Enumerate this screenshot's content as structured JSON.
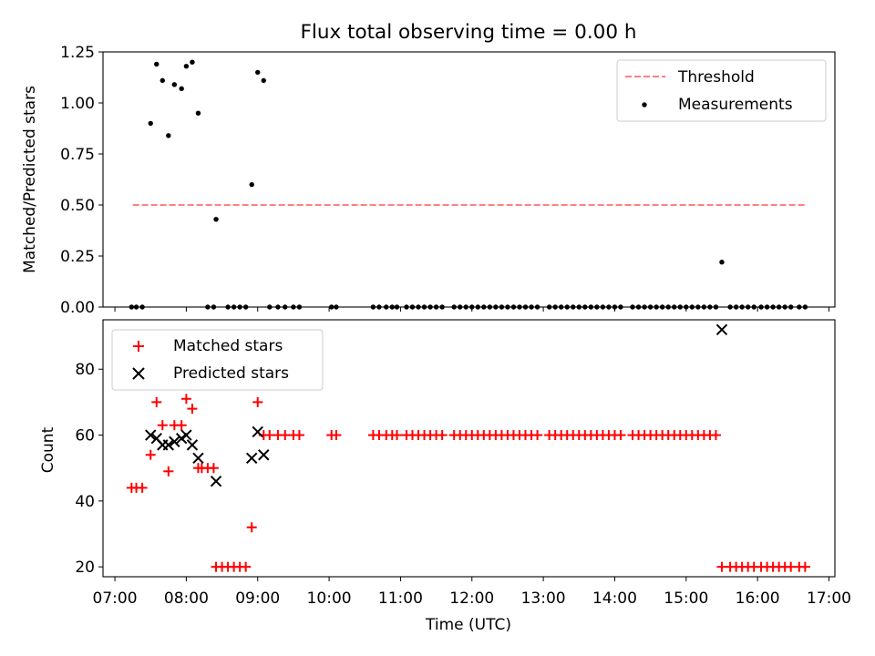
{
  "chart_data": [
    {
      "type": "scatter",
      "title": "Flux total observing time = 0.00 h",
      "xlabel": "",
      "ylabel": "Matched/Predicted stars",
      "ylim": [
        0,
        1.25
      ],
      "yticks": [
        0,
        0.25,
        0.5,
        0.75,
        1.0,
        1.25
      ],
      "ytick_labels": [
        "0.00",
        "0.25",
        "0.50",
        "0.75",
        "1.00",
        "1.25"
      ],
      "xlim": [
        "06:50",
        "17:05"
      ],
      "grid": false,
      "legend": {
        "placement": "upper right",
        "entries": [
          "Threshold",
          "Measurements"
        ]
      },
      "threshold": {
        "name": "Threshold",
        "value": 0.5,
        "x_start": "07:15",
        "x_end": "16:40",
        "color": "#ff8080",
        "style": "dashed"
      },
      "series": [
        {
          "name": "Measurements",
          "color": "#000000",
          "points": [
            [
              "07:14",
              0
            ],
            [
              "07:18",
              0
            ],
            [
              "07:23",
              0
            ],
            [
              "07:30",
              0.9
            ],
            [
              "07:35",
              1.19
            ],
            [
              "07:40",
              1.11
            ],
            [
              "07:45",
              0.84
            ],
            [
              "07:50",
              1.09
            ],
            [
              "07:56",
              1.07
            ],
            [
              "08:00",
              1.18
            ],
            [
              "08:05",
              1.2
            ],
            [
              "08:10",
              0.95
            ],
            [
              "08:18",
              0
            ],
            [
              "08:23",
              0
            ],
            [
              "08:25",
              0.43
            ],
            [
              "08:35",
              0
            ],
            [
              "08:40",
              0
            ],
            [
              "08:45",
              0
            ],
            [
              "08:50",
              0
            ],
            [
              "08:55",
              0.6
            ],
            [
              "09:00",
              1.15
            ],
            [
              "09:05",
              1.11
            ],
            [
              "09:10",
              0
            ],
            [
              "09:17",
              0
            ],
            [
              "09:23",
              0
            ],
            [
              "09:30",
              0
            ],
            [
              "09:35",
              0
            ],
            [
              "10:02",
              0
            ],
            [
              "10:06",
              0
            ],
            [
              "10:37",
              0
            ],
            [
              "10:42",
              0
            ],
            [
              "10:48",
              0
            ],
            [
              "10:53",
              0
            ],
            [
              "10:57",
              0
            ],
            [
              "11:05",
              0
            ],
            [
              "11:10",
              0
            ],
            [
              "11:15",
              0
            ],
            [
              "11:20",
              0
            ],
            [
              "11:25",
              0
            ],
            [
              "11:30",
              0
            ],
            [
              "11:35",
              0
            ],
            [
              "11:45",
              0
            ],
            [
              "11:50",
              0
            ],
            [
              "11:55",
              0
            ],
            [
              "12:00",
              0
            ],
            [
              "12:05",
              0
            ],
            [
              "12:10",
              0
            ],
            [
              "12:15",
              0
            ],
            [
              "12:20",
              0
            ],
            [
              "12:25",
              0
            ],
            [
              "12:30",
              0
            ],
            [
              "12:35",
              0
            ],
            [
              "12:40",
              0
            ],
            [
              "12:45",
              0
            ],
            [
              "12:50",
              0
            ],
            [
              "12:55",
              0
            ],
            [
              "13:05",
              0
            ],
            [
              "13:10",
              0
            ],
            [
              "13:15",
              0
            ],
            [
              "13:20",
              0
            ],
            [
              "13:25",
              0
            ],
            [
              "13:30",
              0
            ],
            [
              "13:35",
              0
            ],
            [
              "13:40",
              0
            ],
            [
              "13:45",
              0
            ],
            [
              "13:50",
              0
            ],
            [
              "13:55",
              0
            ],
            [
              "14:00",
              0
            ],
            [
              "14:05",
              0
            ],
            [
              "14:15",
              0
            ],
            [
              "14:20",
              0
            ],
            [
              "14:25",
              0
            ],
            [
              "14:30",
              0
            ],
            [
              "14:35",
              0
            ],
            [
              "14:40",
              0
            ],
            [
              "14:45",
              0
            ],
            [
              "14:50",
              0
            ],
            [
              "14:55",
              0
            ],
            [
              "15:00",
              0
            ],
            [
              "15:05",
              0
            ],
            [
              "15:10",
              0
            ],
            [
              "15:15",
              0
            ],
            [
              "15:20",
              0
            ],
            [
              "15:25",
              0
            ],
            [
              "15:30",
              0.22
            ],
            [
              "15:37",
              0
            ],
            [
              "15:42",
              0
            ],
            [
              "15:47",
              0
            ],
            [
              "15:52",
              0
            ],
            [
              "15:57",
              0
            ],
            [
              "16:03",
              0
            ],
            [
              "16:08",
              0
            ],
            [
              "16:13",
              0
            ],
            [
              "16:18",
              0
            ],
            [
              "16:23",
              0
            ],
            [
              "16:28",
              0
            ],
            [
              "16:35",
              0
            ],
            [
              "16:40",
              0
            ]
          ]
        }
      ]
    },
    {
      "type": "scatter",
      "xlabel": "Time (UTC)",
      "ylabel": "Count",
      "ylim": [
        17,
        95
      ],
      "yticks": [
        20,
        40,
        60,
        80
      ],
      "ytick_labels": [
        "20",
        "40",
        "60",
        "80"
      ],
      "xlim": [
        "06:50",
        "17:05"
      ],
      "xticks": [
        "07:00",
        "08:00",
        "09:00",
        "10:00",
        "11:00",
        "12:00",
        "13:00",
        "14:00",
        "15:00",
        "16:00",
        "17:00"
      ],
      "xtick_labels": [
        "07:00",
        "08:00",
        "09:00",
        "10:00",
        "11:00",
        "12:00",
        "13:00",
        "14:00",
        "15:00",
        "16:00",
        "17:00"
      ],
      "grid": false,
      "legend": {
        "placement": "upper left",
        "entries": [
          "Matched stars",
          "Predicted stars"
        ]
      },
      "series": [
        {
          "name": "Matched stars",
          "marker": "plus",
          "color": "#ff0000",
          "points": [
            [
              "07:14",
              44
            ],
            [
              "07:18",
              44
            ],
            [
              "07:23",
              44
            ],
            [
              "07:30",
              54
            ],
            [
              "07:35",
              70
            ],
            [
              "07:40",
              63
            ],
            [
              "07:45",
              49
            ],
            [
              "07:50",
              63
            ],
            [
              "07:56",
              63
            ],
            [
              "08:00",
              71
            ],
            [
              "08:05",
              68
            ],
            [
              "08:10",
              50
            ],
            [
              "08:13",
              50
            ],
            [
              "08:18",
              50
            ],
            [
              "08:23",
              50
            ],
            [
              "08:25",
              20
            ],
            [
              "08:30",
              20
            ],
            [
              "08:35",
              20
            ],
            [
              "08:40",
              20
            ],
            [
              "08:45",
              20
            ],
            [
              "08:50",
              20
            ],
            [
              "08:55",
              32
            ],
            [
              "09:00",
              70
            ],
            [
              "09:05",
              60
            ],
            [
              "09:10",
              60
            ],
            [
              "09:17",
              60
            ],
            [
              "09:23",
              60
            ],
            [
              "09:30",
              60
            ],
            [
              "09:35",
              60
            ],
            [
              "10:02",
              60
            ],
            [
              "10:06",
              60
            ],
            [
              "10:37",
              60
            ],
            [
              "10:42",
              60
            ],
            [
              "10:48",
              60
            ],
            [
              "10:53",
              60
            ],
            [
              "10:57",
              60
            ],
            [
              "11:05",
              60
            ],
            [
              "11:10",
              60
            ],
            [
              "11:15",
              60
            ],
            [
              "11:20",
              60
            ],
            [
              "11:25",
              60
            ],
            [
              "11:30",
              60
            ],
            [
              "11:35",
              60
            ],
            [
              "11:45",
              60
            ],
            [
              "11:50",
              60
            ],
            [
              "11:55",
              60
            ],
            [
              "12:00",
              60
            ],
            [
              "12:05",
              60
            ],
            [
              "12:10",
              60
            ],
            [
              "12:15",
              60
            ],
            [
              "12:20",
              60
            ],
            [
              "12:25",
              60
            ],
            [
              "12:30",
              60
            ],
            [
              "12:35",
              60
            ],
            [
              "12:40",
              60
            ],
            [
              "12:45",
              60
            ],
            [
              "12:50",
              60
            ],
            [
              "12:55",
              60
            ],
            [
              "13:05",
              60
            ],
            [
              "13:10",
              60
            ],
            [
              "13:15",
              60
            ],
            [
              "13:20",
              60
            ],
            [
              "13:25",
              60
            ],
            [
              "13:30",
              60
            ],
            [
              "13:35",
              60
            ],
            [
              "13:40",
              60
            ],
            [
              "13:45",
              60
            ],
            [
              "13:50",
              60
            ],
            [
              "13:55",
              60
            ],
            [
              "14:00",
              60
            ],
            [
              "14:05",
              60
            ],
            [
              "14:15",
              60
            ],
            [
              "14:20",
              60
            ],
            [
              "14:25",
              60
            ],
            [
              "14:30",
              60
            ],
            [
              "14:35",
              60
            ],
            [
              "14:40",
              60
            ],
            [
              "14:45",
              60
            ],
            [
              "14:50",
              60
            ],
            [
              "14:55",
              60
            ],
            [
              "15:00",
              60
            ],
            [
              "15:05",
              60
            ],
            [
              "15:10",
              60
            ],
            [
              "15:15",
              60
            ],
            [
              "15:20",
              60
            ],
            [
              "15:25",
              60
            ],
            [
              "15:30",
              20
            ],
            [
              "15:37",
              20
            ],
            [
              "15:42",
              20
            ],
            [
              "15:47",
              20
            ],
            [
              "15:52",
              20
            ],
            [
              "15:57",
              20
            ],
            [
              "16:03",
              20
            ],
            [
              "16:08",
              20
            ],
            [
              "16:13",
              20
            ],
            [
              "16:18",
              20
            ],
            [
              "16:23",
              20
            ],
            [
              "16:28",
              20
            ],
            [
              "16:35",
              20
            ],
            [
              "16:40",
              20
            ]
          ]
        },
        {
          "name": "Predicted stars",
          "marker": "x",
          "color": "#000000",
          "points": [
            [
              "07:30",
              60
            ],
            [
              "07:35",
              59
            ],
            [
              "07:40",
              57
            ],
            [
              "07:45",
              57
            ],
            [
              "07:50",
              58
            ],
            [
              "07:56",
              59
            ],
            [
              "08:00",
              60
            ],
            [
              "08:05",
              57
            ],
            [
              "08:10",
              53
            ],
            [
              "08:25",
              46
            ],
            [
              "08:55",
              53
            ],
            [
              "09:00",
              61
            ],
            [
              "09:05",
              54
            ],
            [
              "15:30",
              92
            ]
          ]
        }
      ]
    }
  ]
}
